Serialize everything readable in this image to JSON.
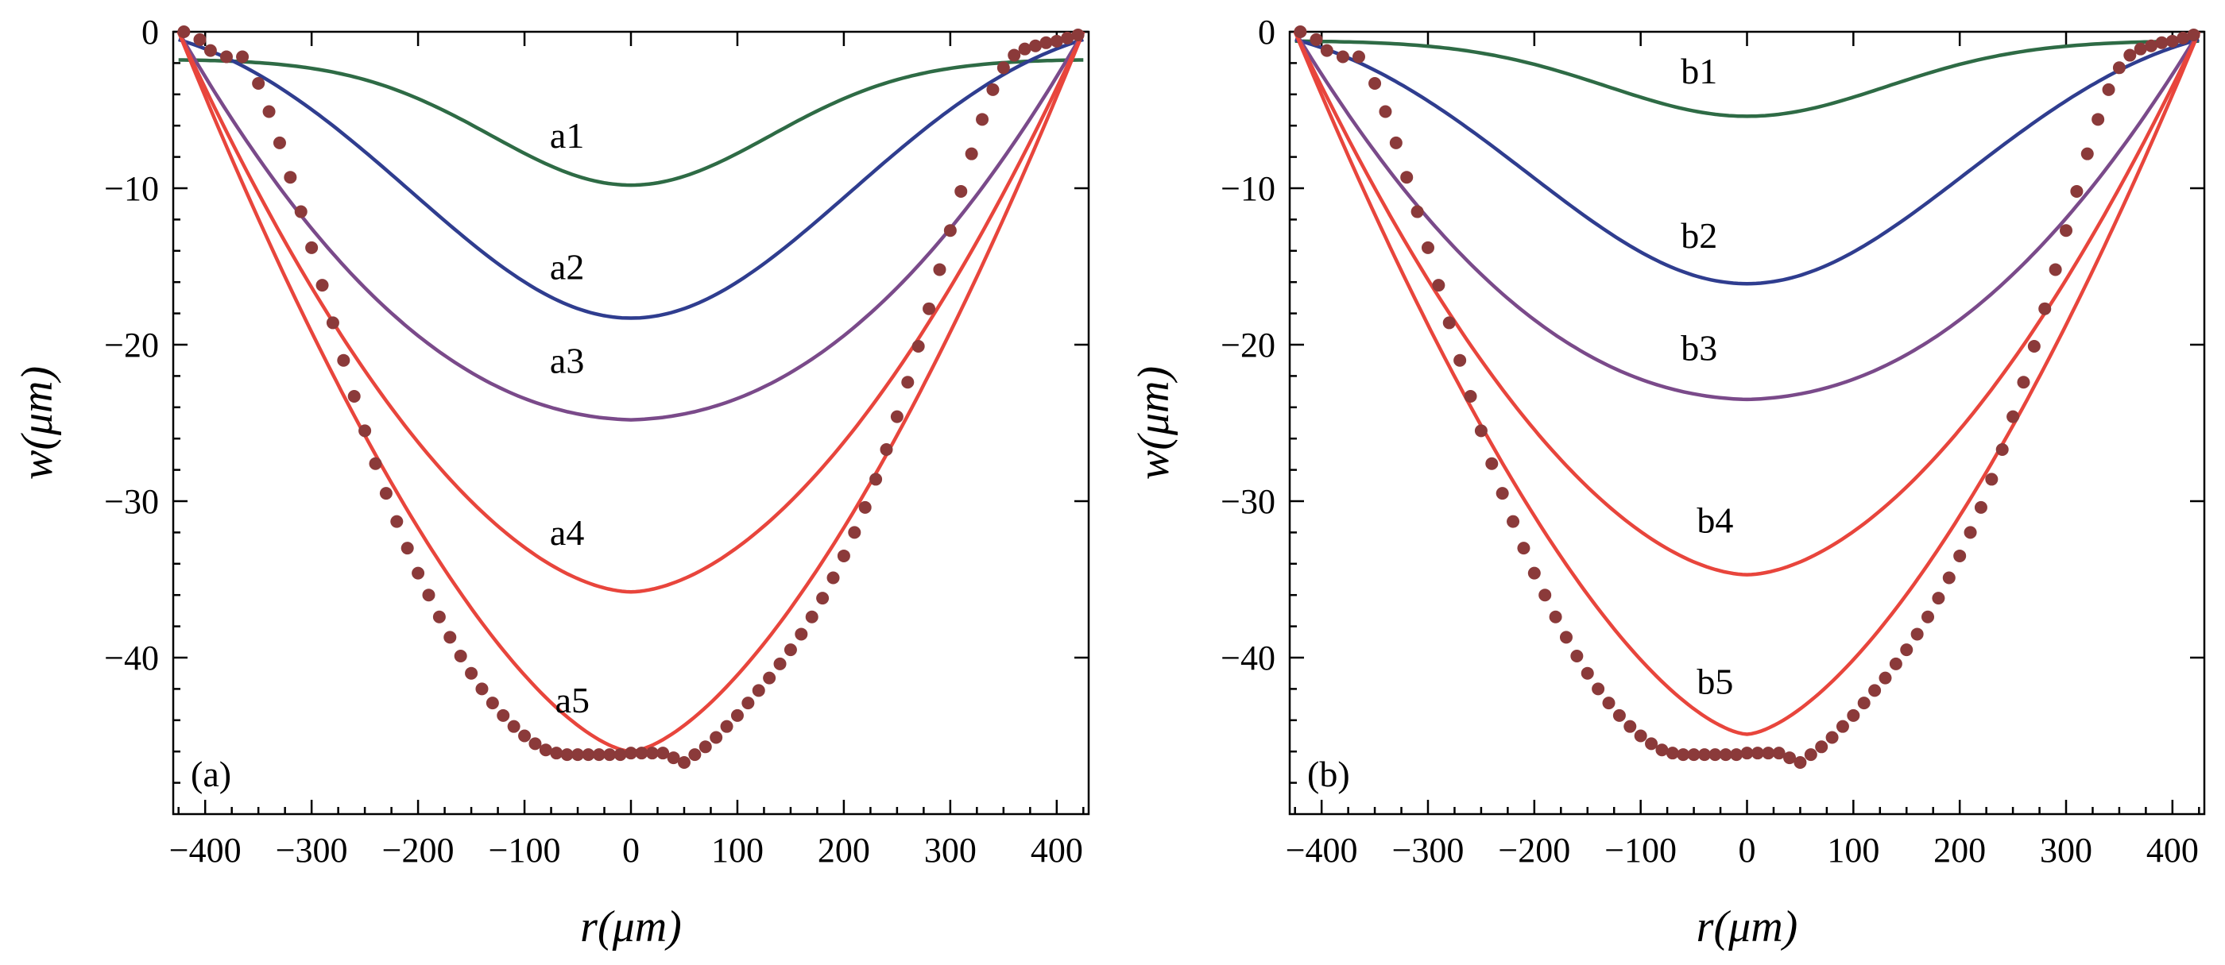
{
  "chart_data": [
    {
      "type": "line",
      "panel_label": "(a)",
      "xlabel": "r(μm)",
      "ylabel": "w(μm)",
      "xlim": [
        -430,
        430
      ],
      "ylim": [
        -50,
        0
      ],
      "x_ticks": [
        -400,
        -300,
        -200,
        -100,
        0,
        100,
        200,
        300,
        400
      ],
      "y_ticks": [
        0,
        -10,
        -20,
        -30,
        -40
      ],
      "grid": false,
      "series": [
        {
          "name": "a1",
          "color": "#2e6b45",
          "depth": -9.8,
          "shape": "bell",
          "edge": -1.8,
          "label_at": [
            -60,
            -7.4
          ]
        },
        {
          "name": "a2",
          "color": "#2f3d8f",
          "depth": -18.3,
          "shape": "bell-wide",
          "edge": -0.5,
          "label_at": [
            -60,
            -15.8
          ]
        },
        {
          "name": "a3",
          "color": "#7a4a8a",
          "depth": -24.8,
          "shape": "bowl",
          "edge": 0,
          "label_at": [
            -60,
            -21.8
          ]
        },
        {
          "name": "a4",
          "color": "#e8453c",
          "depth": -35.8,
          "shape": "bowl-steep",
          "edge": 0,
          "label_at": [
            -60,
            -32.8
          ]
        },
        {
          "name": "a5",
          "color": "#e8453c",
          "depth": -46.0,
          "shape": "parabola",
          "edge": 0,
          "label_at": [
            -55,
            -43.5
          ]
        }
      ],
      "dotted_series": {
        "color": "#8b3a3a",
        "points": [
          [
            -420,
            0
          ],
          [
            -405,
            -0.5
          ],
          [
            -395,
            -1.2
          ],
          [
            -380,
            -1.6
          ],
          [
            -365,
            -1.6
          ],
          [
            -350,
            -3.3
          ],
          [
            -340,
            -5.1
          ],
          [
            -330,
            -7.1
          ],
          [
            -320,
            -9.3
          ],
          [
            -310,
            -11.5
          ],
          [
            -300,
            -13.8
          ],
          [
            -290,
            -16.2
          ],
          [
            -280,
            -18.6
          ],
          [
            -270,
            -21.0
          ],
          [
            -260,
            -23.3
          ],
          [
            -250,
            -25.5
          ],
          [
            -240,
            -27.6
          ],
          [
            -230,
            -29.5
          ],
          [
            -220,
            -31.3
          ],
          [
            -210,
            -33.0
          ],
          [
            -200,
            -34.6
          ],
          [
            -190,
            -36.0
          ],
          [
            -180,
            -37.4
          ],
          [
            -170,
            -38.7
          ],
          [
            -160,
            -39.9
          ],
          [
            -150,
            -41.0
          ],
          [
            -140,
            -42.0
          ],
          [
            -130,
            -42.9
          ],
          [
            -120,
            -43.7
          ],
          [
            -110,
            -44.4
          ],
          [
            -100,
            -45.0
          ],
          [
            -90,
            -45.5
          ],
          [
            -80,
            -45.9
          ],
          [
            -70,
            -46.1
          ],
          [
            -60,
            -46.2
          ],
          [
            -50,
            -46.2
          ],
          [
            -40,
            -46.2
          ],
          [
            -30,
            -46.2
          ],
          [
            -20,
            -46.2
          ],
          [
            -10,
            -46.2
          ],
          [
            0,
            -46.1
          ],
          [
            10,
            -46.1
          ],
          [
            20,
            -46.1
          ],
          [
            30,
            -46.1
          ],
          [
            40,
            -46.4
          ],
          [
            50,
            -46.7
          ],
          [
            60,
            -46.2
          ],
          [
            70,
            -45.7
          ],
          [
            80,
            -45.1
          ],
          [
            90,
            -44.4
          ],
          [
            100,
            -43.7
          ],
          [
            110,
            -42.9
          ],
          [
            120,
            -42.1
          ],
          [
            130,
            -41.3
          ],
          [
            140,
            -40.4
          ],
          [
            150,
            -39.5
          ],
          [
            160,
            -38.5
          ],
          [
            170,
            -37.4
          ],
          [
            180,
            -36.2
          ],
          [
            190,
            -34.9
          ],
          [
            200,
            -33.5
          ],
          [
            210,
            -32.0
          ],
          [
            220,
            -30.4
          ],
          [
            230,
            -28.6
          ],
          [
            240,
            -26.7
          ],
          [
            250,
            -24.6
          ],
          [
            260,
            -22.4
          ],
          [
            270,
            -20.1
          ],
          [
            280,
            -17.7
          ],
          [
            290,
            -15.2
          ],
          [
            300,
            -12.7
          ],
          [
            310,
            -10.2
          ],
          [
            320,
            -7.8
          ],
          [
            330,
            -5.6
          ],
          [
            340,
            -3.7
          ],
          [
            350,
            -2.3
          ],
          [
            360,
            -1.5
          ],
          [
            370,
            -1.1
          ],
          [
            380,
            -0.9
          ],
          [
            390,
            -0.7
          ],
          [
            400,
            -0.6
          ],
          [
            410,
            -0.4
          ],
          [
            420,
            -0.2
          ]
        ]
      }
    },
    {
      "type": "line",
      "panel_label": "(b)",
      "xlabel": "r(μm)",
      "ylabel": "w(μm)",
      "xlim": [
        -430,
        430
      ],
      "ylim": [
        -50,
        0
      ],
      "x_ticks": [
        -400,
        -300,
        -200,
        -100,
        0,
        100,
        200,
        300,
        400
      ],
      "y_ticks": [
        0,
        -10,
        -20,
        -30,
        -40
      ],
      "grid": false,
      "series": [
        {
          "name": "b1",
          "color": "#2e6b45",
          "depth": -5.4,
          "shape": "bell",
          "edge": -0.6,
          "label_at": [
            -45,
            -3.3
          ]
        },
        {
          "name": "b2",
          "color": "#2f3d8f",
          "depth": -16.1,
          "shape": "bell-wide",
          "edge": -0.5,
          "label_at": [
            -45,
            -13.8
          ]
        },
        {
          "name": "b3",
          "color": "#7a4a8a",
          "depth": -23.5,
          "shape": "bowl",
          "edge": 0,
          "label_at": [
            -45,
            -21.0
          ]
        },
        {
          "name": "b4",
          "color": "#e8453c",
          "depth": -34.7,
          "shape": "bowl-steep",
          "edge": 0,
          "label_at": [
            -30,
            -32.0
          ]
        },
        {
          "name": "b5",
          "color": "#e8453c",
          "depth": -44.9,
          "shape": "parabola",
          "edge": 0,
          "label_at": [
            -30,
            -42.3
          ]
        }
      ],
      "dotted_series": {
        "color": "#8b3a3a",
        "points": [
          [
            -420,
            0
          ],
          [
            -405,
            -0.5
          ],
          [
            -395,
            -1.2
          ],
          [
            -380,
            -1.6
          ],
          [
            -365,
            -1.6
          ],
          [
            -350,
            -3.3
          ],
          [
            -340,
            -5.1
          ],
          [
            -330,
            -7.1
          ],
          [
            -320,
            -9.3
          ],
          [
            -310,
            -11.5
          ],
          [
            -300,
            -13.8
          ],
          [
            -290,
            -16.2
          ],
          [
            -280,
            -18.6
          ],
          [
            -270,
            -21.0
          ],
          [
            -260,
            -23.3
          ],
          [
            -250,
            -25.5
          ],
          [
            -240,
            -27.6
          ],
          [
            -230,
            -29.5
          ],
          [
            -220,
            -31.3
          ],
          [
            -210,
            -33.0
          ],
          [
            -200,
            -34.6
          ],
          [
            -190,
            -36.0
          ],
          [
            -180,
            -37.4
          ],
          [
            -170,
            -38.7
          ],
          [
            -160,
            -39.9
          ],
          [
            -150,
            -41.0
          ],
          [
            -140,
            -42.0
          ],
          [
            -130,
            -42.9
          ],
          [
            -120,
            -43.7
          ],
          [
            -110,
            -44.4
          ],
          [
            -100,
            -45.0
          ],
          [
            -90,
            -45.5
          ],
          [
            -80,
            -45.9
          ],
          [
            -70,
            -46.1
          ],
          [
            -60,
            -46.2
          ],
          [
            -50,
            -46.2
          ],
          [
            -40,
            -46.2
          ],
          [
            -30,
            -46.2
          ],
          [
            -20,
            -46.2
          ],
          [
            -10,
            -46.2
          ],
          [
            0,
            -46.1
          ],
          [
            10,
            -46.1
          ],
          [
            20,
            -46.1
          ],
          [
            30,
            -46.1
          ],
          [
            40,
            -46.4
          ],
          [
            50,
            -46.7
          ],
          [
            60,
            -46.2
          ],
          [
            70,
            -45.7
          ],
          [
            80,
            -45.1
          ],
          [
            90,
            -44.4
          ],
          [
            100,
            -43.7
          ],
          [
            110,
            -42.9
          ],
          [
            120,
            -42.1
          ],
          [
            130,
            -41.3
          ],
          [
            140,
            -40.4
          ],
          [
            150,
            -39.5
          ],
          [
            160,
            -38.5
          ],
          [
            170,
            -37.4
          ],
          [
            180,
            -36.2
          ],
          [
            190,
            -34.9
          ],
          [
            200,
            -33.5
          ],
          [
            210,
            -32.0
          ],
          [
            220,
            -30.4
          ],
          [
            230,
            -28.6
          ],
          [
            240,
            -26.7
          ],
          [
            250,
            -24.6
          ],
          [
            260,
            -22.4
          ],
          [
            270,
            -20.1
          ],
          [
            280,
            -17.7
          ],
          [
            290,
            -15.2
          ],
          [
            300,
            -12.7
          ],
          [
            310,
            -10.2
          ],
          [
            320,
            -7.8
          ],
          [
            330,
            -5.6
          ],
          [
            340,
            -3.7
          ],
          [
            350,
            -2.3
          ],
          [
            360,
            -1.5
          ],
          [
            370,
            -1.1
          ],
          [
            380,
            -0.9
          ],
          [
            390,
            -0.7
          ],
          [
            400,
            -0.6
          ],
          [
            410,
            -0.4
          ],
          [
            420,
            -0.2
          ]
        ]
      }
    }
  ]
}
